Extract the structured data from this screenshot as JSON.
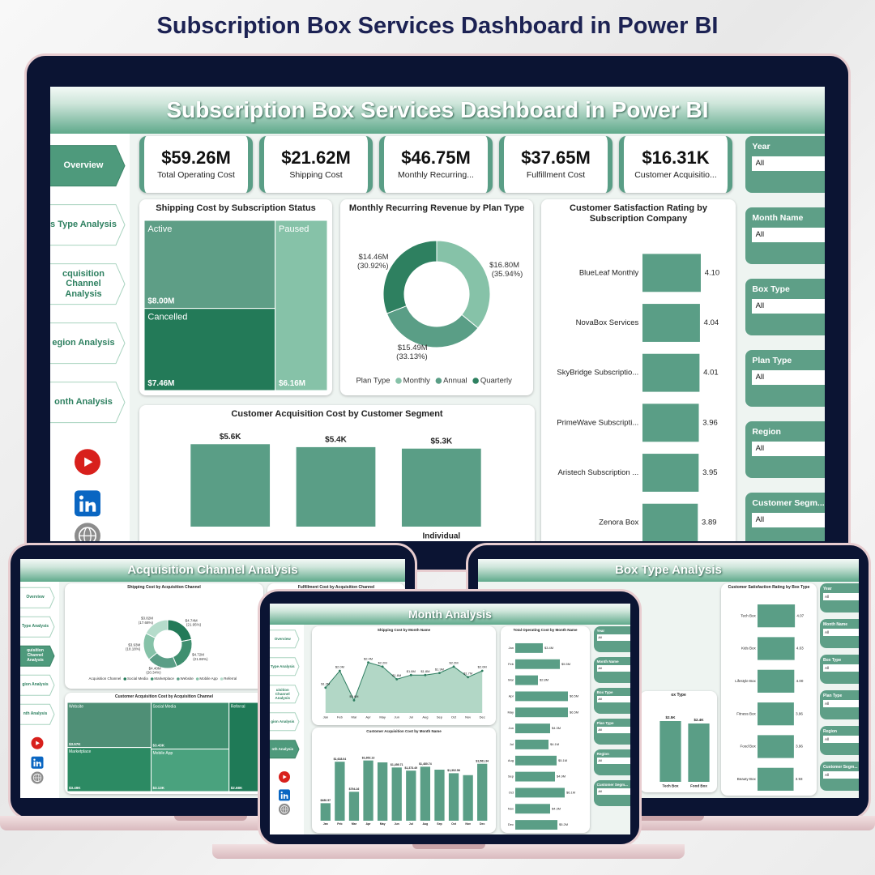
{
  "page_title": "Subscription Box Services Dashboard in Power BI",
  "overview": {
    "header": "Subscription Box Services Dashboard in Power BI",
    "nav": [
      "Overview",
      "s Type Analysis",
      "cquisition Channel Analysis",
      "egion Analysis",
      "onth Analysis"
    ],
    "kpis": [
      {
        "value": "$59.26M",
        "label": "Total Operating Cost"
      },
      {
        "value": "$21.62M",
        "label": "Shipping Cost"
      },
      {
        "value": "$46.75M",
        "label": "Monthly Recurring..."
      },
      {
        "value": "$37.65M",
        "label": "Fulfillment Cost"
      },
      {
        "value": "$16.31K",
        "label": "Customer Acquisitio..."
      }
    ],
    "shipping_by_status": {
      "type": "treemap",
      "title": "Shipping Cost by Subscription Status",
      "categories": [
        "Active",
        "Paused",
        "Cancelled"
      ],
      "values": [
        8.0,
        6.16,
        7.46
      ],
      "value_labels": [
        "$8.00M",
        "$6.16M",
        "$7.46M"
      ],
      "colors": [
        "#5e9e86",
        "#86c2a8",
        "#237a58"
      ]
    },
    "mrr_by_plan": {
      "type": "pie",
      "title": "Monthly Recurring Revenue by Plan Type",
      "legend_title": "Plan Type",
      "categories": [
        "Monthly",
        "Annual",
        "Quarterly"
      ],
      "values": [
        16.8,
        15.49,
        14.46
      ],
      "value_labels": [
        "$16.80M (35.94%)",
        "$15.49M (33.13%)",
        "$14.46M (30.92%)"
      ],
      "colors": [
        "#86c2a8",
        "#5a9e86",
        "#2e8060"
      ]
    },
    "satisfaction_by_company": {
      "type": "bar",
      "title": "Customer Satisfaction Rating by Subscription Company",
      "categories": [
        "BlueLeaf Monthly",
        "NovaBox Services",
        "SkyBridge Subscriptio...",
        "PrimeWave Subscripti...",
        "Aristech Subscription ...",
        "Zenora Box"
      ],
      "values": [
        4.1,
        4.04,
        4.01,
        3.96,
        3.95,
        3.89
      ],
      "value_labels": [
        "4.10",
        "4.04",
        "4.01",
        "3.96",
        "3.95",
        "3.89"
      ],
      "xlim": [
        0,
        4.5
      ],
      "color": "#5a9e86"
    },
    "cac_by_segment": {
      "type": "bar",
      "title": "Customer Acquisition Cost by Customer Segment",
      "categories": [
        null,
        null,
        "Individual"
      ],
      "values": [
        5600,
        5400,
        5300
      ],
      "value_labels": [
        "$5.6K",
        "$5.4K",
        "$5.3K"
      ],
      "ylim": [
        0,
        6000
      ],
      "color": "#5a9e86"
    },
    "slicers": [
      {
        "label": "Year",
        "value": "All"
      },
      {
        "label": "Month Name",
        "value": "All"
      },
      {
        "label": "Box Type",
        "value": "All"
      },
      {
        "label": "Plan Type",
        "value": "All"
      },
      {
        "label": "Region",
        "value": "All"
      },
      {
        "label": "Customer Segm...",
        "value": "All"
      }
    ]
  },
  "acquisition": {
    "header": "Acquisition Channel Analysis",
    "nav": [
      "Overview",
      "Type Analysis",
      "quisition Channel Analysis",
      "gion Analysis",
      "nth Analysis"
    ],
    "shipping_by_channel": {
      "type": "pie",
      "title": "Shipping Cost by Acquisition Channel",
      "legend_title": "Acquisition Channel",
      "categories": [
        "Social Media",
        "Marketplace",
        "Website",
        "Mobile App",
        "Referral"
      ],
      "values": [
        4.74,
        4.72,
        4.4,
        3.93,
        3.82
      ],
      "value_labels": [
        "$4.74M (21.95%)",
        "$4.72M (21.86%)",
        "$4.40M (20.34%)",
        "$3.93M (18.18%)",
        "$3.82M (17.68%)"
      ],
      "colors": [
        "#237a58",
        "#3f8f6f",
        "#5a9e86",
        "#86c2a8",
        "#b5dccb"
      ]
    },
    "fulfillment_title": "Fulfillment Cost by Acquisition Channel",
    "cac_by_channel": {
      "type": "treemap",
      "title": "Customer Acquisition Cost by Acquisition Channel",
      "categories": [
        "Website",
        "Social Media",
        "Referral",
        "Marketplace",
        "Mobile App"
      ],
      "values": [
        3.57,
        3.43,
        2.68,
        3.49,
        3.13
      ],
      "value_labels": [
        "$3.57K",
        "$3.43K",
        "$2.68K",
        "$3.49K",
        "$3.13K"
      ],
      "colors": [
        "#4f8f76",
        "#3f8f6f",
        "#1f7a57",
        "#2c8a63",
        "#4aa27e"
      ]
    }
  },
  "box": {
    "header": "Box Type Analysis",
    "satisfaction_by_box": {
      "type": "bar",
      "title": "Customer Satisfaction Rating by Box Type",
      "categories": [
        "Tech Box",
        "Kids Box",
        "Lifestyle Box",
        "Fitness Box",
        "Food Box",
        "Beauty Box"
      ],
      "values": [
        4.07,
        4.03,
        4.0,
        3.96,
        3.96,
        3.93
      ],
      "value_labels": [
        "4.07",
        "4.03",
        "4.00",
        "3.96",
        "3.96",
        "3.93"
      ],
      "xlim": [
        0,
        4.5
      ],
      "color": "#5a9e86"
    },
    "cac_by_box_type": {
      "type": "bar",
      "title": "ox Type",
      "categories": [
        "Tech Box",
        "Food Box"
      ],
      "values": [
        2500,
        2400
      ],
      "value_labels": [
        "$2.5K",
        "$2.4K"
      ],
      "ylim": [
        0,
        3000
      ],
      "color": "#5a9e86"
    },
    "slicers": [
      {
        "label": "Year",
        "value": "All"
      },
      {
        "label": "Month Name",
        "value": "All"
      },
      {
        "label": "Box Type",
        "value": "All"
      },
      {
        "label": "Plan Type",
        "value": "All"
      },
      {
        "label": "Region",
        "value": "All"
      },
      {
        "label": "Customer Segm...",
        "value": "All"
      }
    ]
  },
  "month": {
    "header": "Month Analysis",
    "nav": [
      "Overview",
      "Type Analysis",
      "uisition Channel Analysis",
      "gion Analysis",
      "nth Analysis"
    ],
    "shipping_by_month": {
      "type": "line",
      "title": "Shipping Cost by Month Name",
      "categories": [
        "Jan",
        "Feb",
        "Mar",
        "Apr",
        "May",
        "Jun",
        "Jul",
        "Aug",
        "Sep",
        "Oct",
        "Nov",
        "Dec"
      ],
      "values": [
        1.2,
        2.0,
        0.6,
        2.4,
        2.2,
        1.6,
        1.8,
        1.8,
        1.9,
        2.2,
        1.7,
        2.0
      ],
      "value_labels": [
        "$1.2M",
        "$2.0M",
        "$0.6M",
        "$2.4M",
        "$2.2M",
        "$1.6M",
        "$1.8M",
        "$1.8M",
        "$1.9M",
        "$2.2M",
        "$1.7M",
        "$2.0M"
      ],
      "ylim": [
        0,
        3
      ]
    },
    "operating_by_month": {
      "type": "bar",
      "title": "Total Operating Cost by Month Name",
      "categories": [
        "Jan",
        "Feb",
        "Mar",
        "Apr",
        "May",
        "Jun",
        "Jul",
        "Aug",
        "Sep",
        "Oct",
        "Nov",
        "Dec"
      ],
      "values": [
        3.4,
        5.5,
        2.8,
        6.5,
        6.5,
        4.3,
        4.1,
        5.1,
        4.9,
        6.1,
        4.3,
        5.2
      ],
      "value_labels": [
        "$3.4M",
        "$5.5M",
        "$2.8M",
        "$6.5M",
        "$6.5M",
        "$4.3M",
        "$4.1M",
        "$5.1M",
        "$4.9M",
        "$6.1M",
        "$4.3M",
        "$5.2M"
      ],
      "xlim": [
        0,
        7
      ],
      "color": "#5a9e86"
    },
    "cac_by_month": {
      "type": "bar",
      "title": "Customer Acquisition Cost by Month Name",
      "categories": [
        "Jan",
        "Feb",
        "Mar",
        "Apr",
        "May",
        "Jun",
        "Jul",
        "Aug",
        "Sep",
        "Oct",
        "Nov",
        "Dec"
      ],
      "values": [
        480.57,
        1618.04,
        794.16,
        1652.13,
        1600,
        1459.71,
        1373.49,
        1480.74,
        1400,
        1302.56,
        1250,
        1561.34
      ],
      "value_labels": [
        "$480.57",
        "$1,618.04",
        "$794.16",
        "$1,652.13",
        null,
        "$1,459.71",
        "$1,373.49",
        "$1,480.74",
        null,
        "$1,302.56",
        null,
        "$1,561.34"
      ],
      "ylim": [
        0,
        2000
      ],
      "color": "#5a9e86"
    },
    "slicers": [
      {
        "label": "Year",
        "value": "All"
      },
      {
        "label": "Month Name",
        "value": "All"
      },
      {
        "label": "Box Type",
        "value": "All"
      },
      {
        "label": "Plan Type",
        "value": "All"
      },
      {
        "label": "Region",
        "value": "All"
      },
      {
        "label": "Customer Segm...",
        "value": "All"
      }
    ]
  }
}
